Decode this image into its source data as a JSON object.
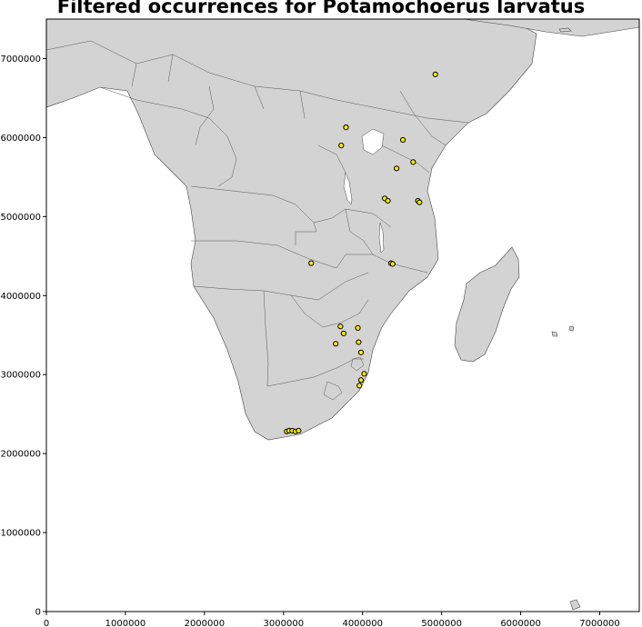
{
  "title": "Filtered occurrences for Potamochoerus larvatus",
  "colors": {
    "land": "#d3d3d3",
    "point_fill": "#ffee00",
    "point_stroke": "#000000"
  },
  "chart_data": {
    "type": "scatter",
    "title": "Filtered occurrences for Potamochoerus larvatus",
    "xlim": [
      0,
      7500000
    ],
    "ylim": [
      0,
      7500000
    ],
    "x_ticks": [
      0,
      1000000,
      2000000,
      3000000,
      4000000,
      5000000,
      6000000,
      7000000
    ],
    "y_ticks": [
      0,
      1000000,
      2000000,
      3000000,
      4000000,
      5000000,
      6000000,
      7000000
    ],
    "grid": false,
    "basemap": "country boundaries (land grey)",
    "points": [
      {
        "x": 4920000,
        "y": 6800000
      },
      {
        "x": 3790000,
        "y": 6130000
      },
      {
        "x": 3730000,
        "y": 5900000
      },
      {
        "x": 4510000,
        "y": 5970000
      },
      {
        "x": 4640000,
        "y": 5690000
      },
      {
        "x": 4430000,
        "y": 5610000
      },
      {
        "x": 4280000,
        "y": 5230000
      },
      {
        "x": 4320000,
        "y": 5200000
      },
      {
        "x": 4700000,
        "y": 5200000
      },
      {
        "x": 4720000,
        "y": 5180000
      },
      {
        "x": 3350000,
        "y": 4410000
      },
      {
        "x": 4360000,
        "y": 4410000
      },
      {
        "x": 4380000,
        "y": 4400000
      },
      {
        "x": 3720000,
        "y": 3610000
      },
      {
        "x": 3940000,
        "y": 3590000
      },
      {
        "x": 3760000,
        "y": 3520000
      },
      {
        "x": 3950000,
        "y": 3410000
      },
      {
        "x": 3660000,
        "y": 3390000
      },
      {
        "x": 3980000,
        "y": 3280000
      },
      {
        "x": 4020000,
        "y": 3010000
      },
      {
        "x": 3980000,
        "y": 2930000
      },
      {
        "x": 3960000,
        "y": 2860000
      },
      {
        "x": 3040000,
        "y": 2280000
      },
      {
        "x": 3070000,
        "y": 2290000
      },
      {
        "x": 3110000,
        "y": 2290000
      },
      {
        "x": 3150000,
        "y": 2280000
      },
      {
        "x": 3190000,
        "y": 2290000
      }
    ]
  }
}
